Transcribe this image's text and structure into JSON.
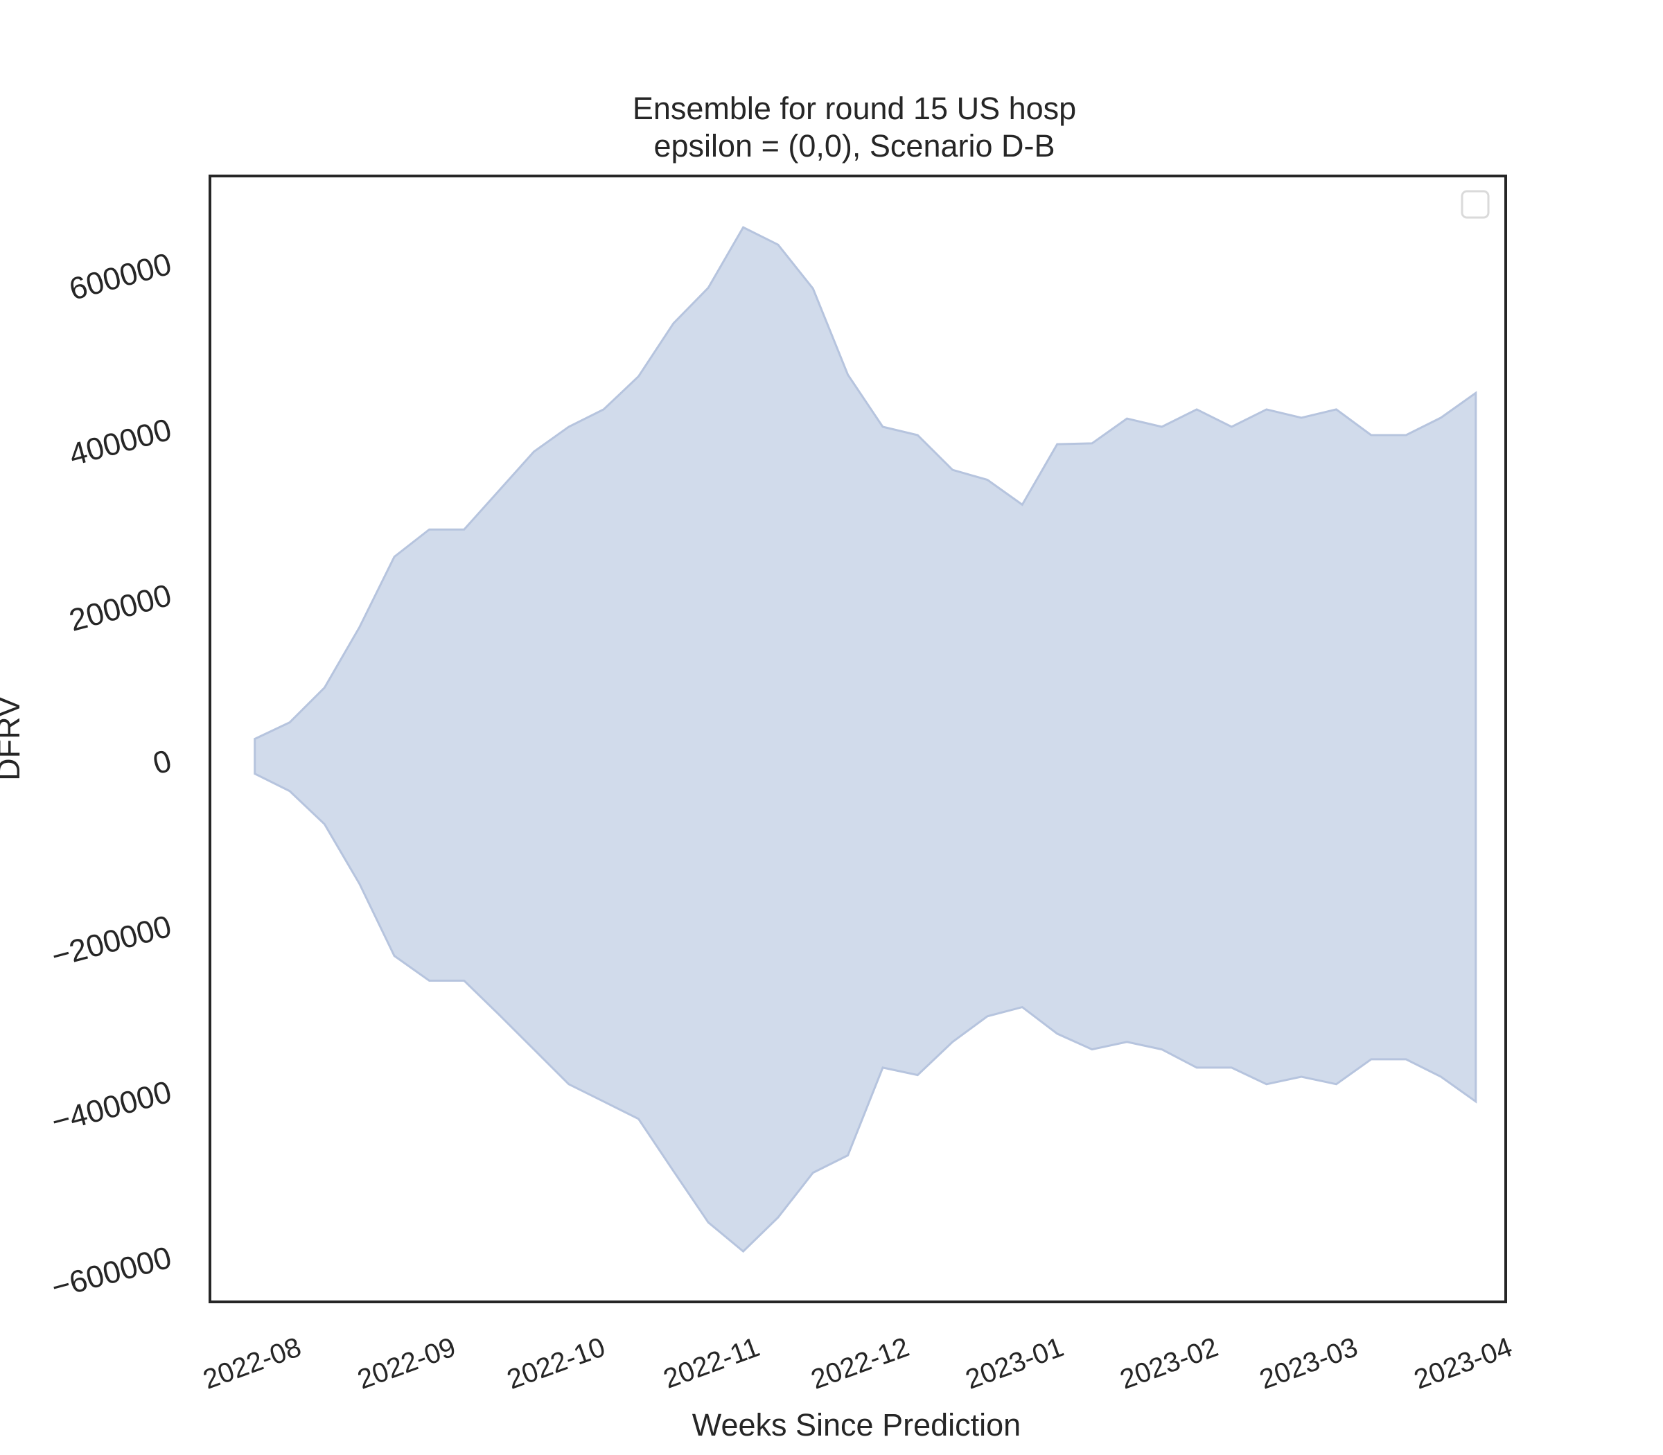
{
  "chart_data": {
    "type": "area",
    "title": "Ensemble for round 15 US hosp",
    "subtitle": "epsilon = (0,0), Scenario D-B",
    "xlabel": "Weeks Since Prediction",
    "ylabel": "DFRV",
    "x_tick_labels": [
      "2022-08",
      "2022-09",
      "2022-10",
      "2022-11",
      "2022-12",
      "2023-01",
      "2023-02",
      "2023-03",
      "2023-04"
    ],
    "x_tick_dates": [
      "2022-08-01",
      "2022-09-01",
      "2022-10-01",
      "2022-11-01",
      "2022-12-01",
      "2023-01-01",
      "2023-02-01",
      "2023-03-01",
      "2023-04-01"
    ],
    "y_tick_labels": [
      "−600000",
      "−400000",
      "−200000",
      "0",
      "200000",
      "400000",
      "600000"
    ],
    "y_tick_values": [
      -600000,
      -400000,
      -200000,
      0,
      200000,
      400000,
      600000
    ],
    "xlim": [
      "2022-07-15",
      "2023-04-01"
    ],
    "ylim": [
      -655000,
      705000
    ],
    "grid": false,
    "legend": {
      "placement": "top-right",
      "entries": []
    },
    "fill_color": "#d1dbeb",
    "edge_color": "#b6c4de",
    "series": [
      {
        "x": [
          "2022-07-24",
          "2022-07-31",
          "2022-08-07",
          "2022-08-14",
          "2022-08-21",
          "2022-08-28",
          "2022-09-04",
          "2022-09-11",
          "2022-09-18",
          "2022-09-25",
          "2022-10-02",
          "2022-10-09",
          "2022-10-16",
          "2022-10-23",
          "2022-10-30",
          "2022-11-06",
          "2022-11-13",
          "2022-11-20",
          "2022-11-27",
          "2022-12-04",
          "2022-12-11",
          "2022-12-18",
          "2022-12-25",
          "2023-01-01",
          "2023-01-08",
          "2023-01-15",
          "2023-01-22",
          "2023-01-29",
          "2023-02-05",
          "2023-02-12",
          "2023-02-19",
          "2023-02-26",
          "2023-03-05",
          "2023-03-12",
          "2023-03-19",
          "2023-03-26"
        ],
        "upper": [
          25000,
          45000,
          87000,
          160000,
          245000,
          278000,
          278000,
          325000,
          372000,
          402000,
          423000,
          463000,
          527000,
          570000,
          643000,
          622000,
          569000,
          465000,
          402000,
          392000,
          350000,
          338000,
          308000,
          381000,
          382000,
          412000,
          402000,
          423000,
          402000,
          423000,
          413000,
          423000,
          392000,
          392000,
          413000,
          443000
        ],
        "lower": [
          -17000,
          -38000,
          -78000,
          -150000,
          -237000,
          -267000,
          -267000,
          -308000,
          -350000,
          -392000,
          -413000,
          -434000,
          -497000,
          -559000,
          -594000,
          -553000,
          -499000,
          -478000,
          -372000,
          -381000,
          -341000,
          -310000,
          -299000,
          -331000,
          -350000,
          -341000,
          -350000,
          -372000,
          -372000,
          -392000,
          -383000,
          -392000,
          -362000,
          -362000,
          -383000,
          -413000
        ]
      }
    ]
  }
}
